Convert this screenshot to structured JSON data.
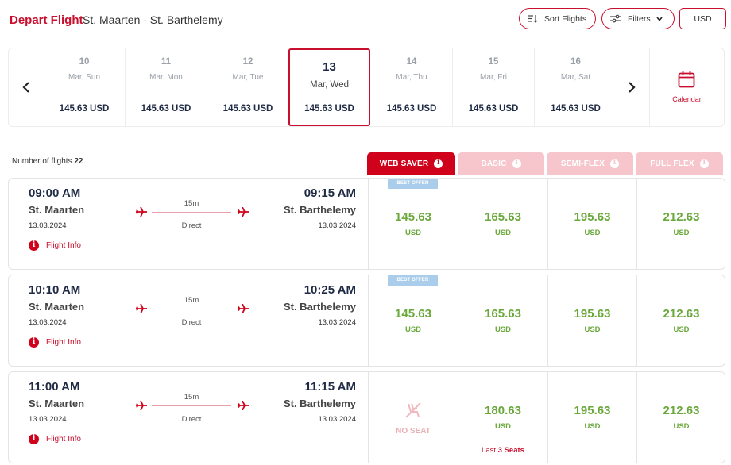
{
  "header": {
    "title": "Depart Flight",
    "route": "St. Maarten - St. Barthelemy",
    "sort_label": "Sort Flights",
    "filters_label": "Filters",
    "currency": "USD"
  },
  "dates": [
    {
      "day": "10",
      "weekday": "Mar, Sun",
      "price": "145.63 USD"
    },
    {
      "day": "11",
      "weekday": "Mar, Mon",
      "price": "145.63 USD"
    },
    {
      "day": "12",
      "weekday": "Mar, Tue",
      "price": "145.63 USD"
    },
    {
      "day": "13",
      "weekday": "Mar, Wed",
      "price": "145.63 USD",
      "selected": true
    },
    {
      "day": "14",
      "weekday": "Mar, Thu",
      "price": "145.63 USD"
    },
    {
      "day": "15",
      "weekday": "Mar, Fri",
      "price": "145.63 USD"
    },
    {
      "day": "16",
      "weekday": "Mar, Sat",
      "price": "145.63 USD"
    }
  ],
  "calendar_label": "Calendar",
  "flight_count": {
    "label": "Number of flights",
    "value": "22"
  },
  "fares": [
    "WEB SAVER",
    "BASIC",
    "SEMI-FLEX",
    "FULL FLEX"
  ],
  "colors": {
    "brand": "#c8102e",
    "price": "#6aa83c",
    "inactive_fare": "#f6c6cc",
    "best_offer": "#a9cdea"
  },
  "flights": [
    {
      "dep_time": "09:00 AM",
      "dep_city": "St. Maarten",
      "dep_date": "13.03.2024",
      "arr_time": "09:15 AM",
      "arr_city": "St. Barthelemy",
      "arr_date": "13.03.2024",
      "duration": "15m",
      "stops": "Direct",
      "info_label": "Flight Info",
      "best_offer": "BEST OFFER",
      "prices": [
        {
          "amount": "145.63",
          "currency": "USD"
        },
        {
          "amount": "165.63",
          "currency": "USD"
        },
        {
          "amount": "195.63",
          "currency": "USD"
        },
        {
          "amount": "212.63",
          "currency": "USD"
        }
      ]
    },
    {
      "dep_time": "10:10 AM",
      "dep_city": "St. Maarten",
      "dep_date": "13.03.2024",
      "arr_time": "10:25 AM",
      "arr_city": "St. Barthelemy",
      "arr_date": "13.03.2024",
      "duration": "15m",
      "stops": "Direct",
      "info_label": "Flight Info",
      "best_offer": "BEST OFFER",
      "prices": [
        {
          "amount": "145.63",
          "currency": "USD"
        },
        {
          "amount": "165.63",
          "currency": "USD"
        },
        {
          "amount": "195.63",
          "currency": "USD"
        },
        {
          "amount": "212.63",
          "currency": "USD"
        }
      ]
    },
    {
      "dep_time": "11:00 AM",
      "dep_city": "St. Maarten",
      "dep_date": "13.03.2024",
      "arr_time": "11:15 AM",
      "arr_city": "St. Barthelemy",
      "arr_date": "13.03.2024",
      "duration": "15m",
      "stops": "Direct",
      "info_label": "Flight Info",
      "no_seat": "NO SEAT",
      "last_seats": {
        "prefix": "Last",
        "count": "3",
        "suffix": "Seats"
      },
      "prices": [
        {
          "amount": "180.63",
          "currency": "USD"
        },
        {
          "amount": "195.63",
          "currency": "USD"
        },
        {
          "amount": "212.63",
          "currency": "USD"
        }
      ]
    }
  ]
}
